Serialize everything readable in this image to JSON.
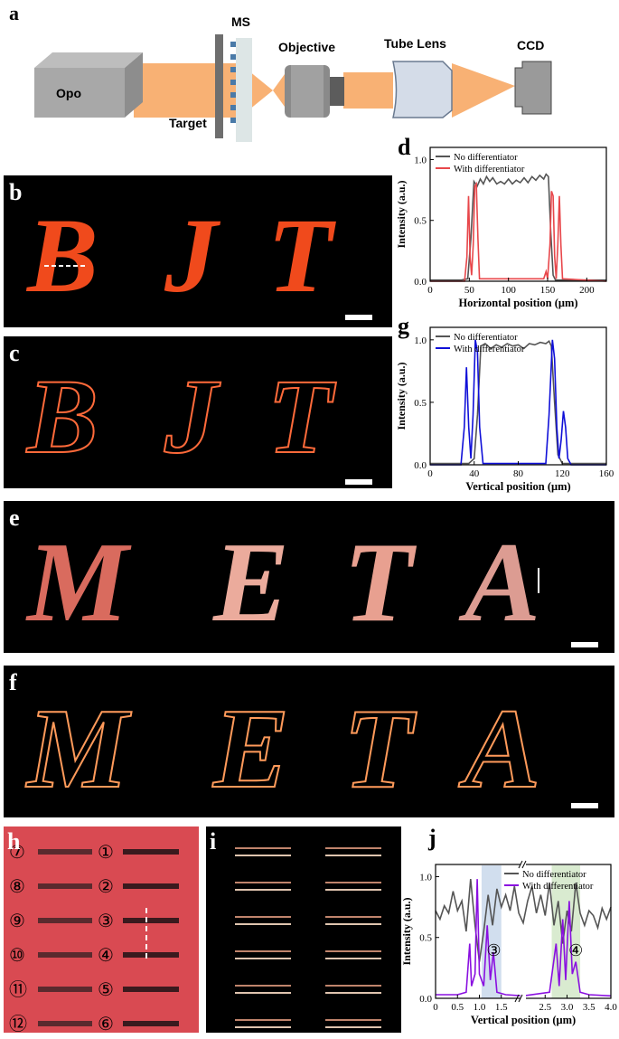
{
  "panels": {
    "a": "a",
    "b": "b",
    "c": "c",
    "d": "d",
    "e": "e",
    "f": "f",
    "g": "g",
    "h": "h",
    "i": "i",
    "j": "j"
  },
  "setup": {
    "opo": "Opo",
    "target": "Target",
    "ms": "MS",
    "objective": "Objective",
    "tube_lens": "Tube Lens",
    "ccd": "CCD"
  },
  "letters": {
    "bit": [
      "B",
      "J",
      "T"
    ],
    "meta": [
      "M",
      "E",
      "T",
      "A"
    ]
  },
  "grating_labels_left": [
    "⑦",
    "⑧",
    "⑨",
    "⑩",
    "⑪",
    "⑫"
  ],
  "grating_labels_right": [
    "①",
    "②",
    "③",
    "④",
    "⑤",
    "⑥"
  ],
  "colors": {
    "beam": "#f7a35c",
    "bright_letter": "#f04a1c",
    "meta_letter": "#e8a090",
    "edge": "#ff6a3a",
    "no_diff": "#555555",
    "with_diff_red": "#e8474b",
    "with_diff_blue": "#1010d8",
    "with_diff_purple": "#8a10e0",
    "band_blue": "#c5d6ea",
    "band_green": "#cfe6c4",
    "grating_bg": "#d94a52"
  },
  "chart_data": [
    {
      "id": "d",
      "type": "line",
      "xlabel": "Horizontal position (μm)",
      "ylabel": "Intensity (a.u.)",
      "xlim": [
        0,
        225
      ],
      "ylim": [
        0,
        1.1
      ],
      "xticks": [
        0,
        50,
        100,
        150,
        200
      ],
      "yticks": [
        0.0,
        0.5,
        1.0
      ],
      "legend_position": "top-left",
      "series": [
        {
          "name": "No differentiator",
          "color": "#555555",
          "points": [
            [
              0,
              0.01
            ],
            [
              40,
              0.01
            ],
            [
              48,
              0.02
            ],
            [
              52,
              0.35
            ],
            [
              56,
              0.82
            ],
            [
              60,
              0.78
            ],
            [
              64,
              0.84
            ],
            [
              68,
              0.8
            ],
            [
              72,
              0.86
            ],
            [
              76,
              0.82
            ],
            [
              80,
              0.85
            ],
            [
              85,
              0.8
            ],
            [
              90,
              0.82
            ],
            [
              95,
              0.8
            ],
            [
              100,
              0.84
            ],
            [
              105,
              0.8
            ],
            [
              110,
              0.83
            ],
            [
              115,
              0.81
            ],
            [
              120,
              0.85
            ],
            [
              125,
              0.81
            ],
            [
              130,
              0.86
            ],
            [
              135,
              0.83
            ],
            [
              140,
              0.87
            ],
            [
              145,
              0.84
            ],
            [
              148,
              0.88
            ],
            [
              151,
              0.86
            ],
            [
              154,
              0.4
            ],
            [
              157,
              0.05
            ],
            [
              160,
              0.01
            ],
            [
              225,
              0.01
            ]
          ]
        },
        {
          "name": "With differentiator",
          "color": "#e8474b",
          "points": [
            [
              0,
              0.0
            ],
            [
              44,
              0.0
            ],
            [
              47,
              0.2
            ],
            [
              49,
              0.7
            ],
            [
              51,
              0.2
            ],
            [
              53,
              0.05
            ],
            [
              55,
              0.3
            ],
            [
              57,
              0.78
            ],
            [
              59,
              0.8
            ],
            [
              61,
              0.35
            ],
            [
              63,
              0.02
            ],
            [
              145,
              0.02
            ],
            [
              148,
              0.08
            ],
            [
              150,
              0.02
            ],
            [
              153,
              0.3
            ],
            [
              155,
              0.74
            ],
            [
              157,
              0.7
            ],
            [
              159,
              0.2
            ],
            [
              161,
              0.02
            ],
            [
              163,
              0.3
            ],
            [
              165,
              0.7
            ],
            [
              167,
              0.3
            ],
            [
              169,
              0.02
            ],
            [
              225,
              0.0
            ]
          ]
        }
      ]
    },
    {
      "id": "g",
      "type": "line",
      "xlabel": "Vertical position (μm)",
      "ylabel": "Intensity (a.u.)",
      "xlim": [
        0,
        160
      ],
      "ylim": [
        0,
        1.1
      ],
      "xticks": [
        0,
        40,
        80,
        120,
        160
      ],
      "yticks": [
        0.0,
        0.5,
        1.0
      ],
      "legend_position": "top-left",
      "series": [
        {
          "name": "No differentiator",
          "color": "#555555",
          "points": [
            [
              0,
              0.01
            ],
            [
              35,
              0.01
            ],
            [
              40,
              0.05
            ],
            [
              43,
              0.4
            ],
            [
              46,
              0.95
            ],
            [
              50,
              0.97
            ],
            [
              55,
              0.93
            ],
            [
              60,
              0.96
            ],
            [
              65,
              0.94
            ],
            [
              70,
              0.97
            ],
            [
              75,
              0.95
            ],
            [
              80,
              0.96
            ],
            [
              85,
              0.93
            ],
            [
              90,
              0.97
            ],
            [
              95,
              0.96
            ],
            [
              100,
              0.98
            ],
            [
              105,
              0.97
            ],
            [
              108,
              0.99
            ],
            [
              110,
              0.95
            ],
            [
              113,
              0.5
            ],
            [
              116,
              0.08
            ],
            [
              120,
              0.01
            ],
            [
              160,
              0.01
            ]
          ]
        },
        {
          "name": "With differentiator",
          "color": "#1010d8",
          "points": [
            [
              0,
              0.0
            ],
            [
              28,
              0.0
            ],
            [
              31,
              0.3
            ],
            [
              33,
              0.78
            ],
            [
              35,
              0.3
            ],
            [
              37,
              0.05
            ],
            [
              39,
              0.4
            ],
            [
              41,
              1.0
            ],
            [
              43,
              0.9
            ],
            [
              45,
              0.3
            ],
            [
              48,
              0.01
            ],
            [
              105,
              0.01
            ],
            [
              108,
              0.4
            ],
            [
              111,
              1.0
            ],
            [
              113,
              0.85
            ],
            [
              115,
              0.3
            ],
            [
              117,
              0.05
            ],
            [
              119,
              0.2
            ],
            [
              121,
              0.43
            ],
            [
              123,
              0.3
            ],
            [
              125,
              0.05
            ],
            [
              128,
              0.0
            ],
            [
              160,
              0.0
            ]
          ]
        }
      ]
    },
    {
      "id": "j",
      "type": "line",
      "xlabel": "Vertical position (μm)",
      "ylabel": "Intensity (a.u.)",
      "xlim": [
        0,
        4.0
      ],
      "ylim": [
        0,
        1.1
      ],
      "xticks": [
        0,
        0.5,
        1.0,
        1.5,
        2.5,
        3.0,
        3.5,
        4.0
      ],
      "xtick_labels": [
        "0",
        "0.5",
        "1.0",
        "1.5",
        "2.5",
        "3.0",
        "3.5",
        "4.0"
      ],
      "yticks": [
        0.0,
        0.5,
        1.0
      ],
      "axis_break_at": 2.0,
      "legend_position": "top-right",
      "annotations": [
        {
          "text": "③",
          "x": 1.33,
          "y": 0.35,
          "band": [
            1.05,
            1.5
          ],
          "band_color": "#c5d6ea"
        },
        {
          "text": "④",
          "x": 3.2,
          "y": 0.35,
          "band": [
            2.65,
            3.3
          ],
          "band_color": "#cfe6c4"
        }
      ],
      "series": [
        {
          "name": "No differentiator",
          "color": "#555555",
          "points": [
            [
              0.0,
              0.72
            ],
            [
              0.1,
              0.65
            ],
            [
              0.2,
              0.76
            ],
            [
              0.3,
              0.7
            ],
            [
              0.4,
              0.88
            ],
            [
              0.5,
              0.72
            ],
            [
              0.6,
              0.8
            ],
            [
              0.7,
              0.55
            ],
            [
              0.8,
              0.98
            ],
            [
              0.9,
              0.6
            ],
            [
              1.0,
              0.3
            ],
            [
              1.1,
              0.55
            ],
            [
              1.2,
              0.85
            ],
            [
              1.3,
              0.6
            ],
            [
              1.4,
              0.9
            ],
            [
              1.5,
              0.75
            ],
            [
              1.6,
              0.85
            ],
            [
              1.7,
              0.72
            ],
            [
              1.8,
              0.92
            ],
            [
              1.9,
              0.7
            ],
            [
              2.0,
              0.62
            ],
            [
              2.1,
              0.8
            ],
            [
              2.2,
              0.92
            ],
            [
              2.3,
              0.7
            ],
            [
              2.4,
              0.85
            ],
            [
              2.5,
              0.68
            ],
            [
              2.6,
              0.95
            ],
            [
              2.7,
              0.6
            ],
            [
              2.8,
              0.8
            ],
            [
              2.9,
              0.45
            ],
            [
              3.0,
              0.72
            ],
            [
              3.1,
              0.55
            ],
            [
              3.2,
              0.95
            ],
            [
              3.3,
              0.7
            ],
            [
              3.4,
              0.6
            ],
            [
              3.5,
              0.72
            ],
            [
              3.6,
              0.68
            ],
            [
              3.7,
              0.58
            ],
            [
              3.8,
              0.74
            ],
            [
              3.9,
              0.65
            ],
            [
              4.0,
              0.75
            ]
          ]
        },
        {
          "name": "With differentiator",
          "color": "#8a10e0",
          "points": [
            [
              0.0,
              0.03
            ],
            [
              0.5,
              0.03
            ],
            [
              0.7,
              0.05
            ],
            [
              0.78,
              0.45
            ],
            [
              0.82,
              0.1
            ],
            [
              0.9,
              0.2
            ],
            [
              0.95,
              0.98
            ],
            [
              1.0,
              0.2
            ],
            [
              1.1,
              0.1
            ],
            [
              1.18,
              0.6
            ],
            [
              1.25,
              0.15
            ],
            [
              1.32,
              0.38
            ],
            [
              1.4,
              0.05
            ],
            [
              1.6,
              0.03
            ],
            [
              2.0,
              0.02
            ],
            [
              2.6,
              0.05
            ],
            [
              2.75,
              0.45
            ],
            [
              2.82,
              0.1
            ],
            [
              2.9,
              0.65
            ],
            [
              2.97,
              0.15
            ],
            [
              3.05,
              0.8
            ],
            [
              3.12,
              0.2
            ],
            [
              3.2,
              0.3
            ],
            [
              3.3,
              0.05
            ],
            [
              3.5,
              0.03
            ],
            [
              4.0,
              0.02
            ]
          ]
        }
      ]
    }
  ]
}
